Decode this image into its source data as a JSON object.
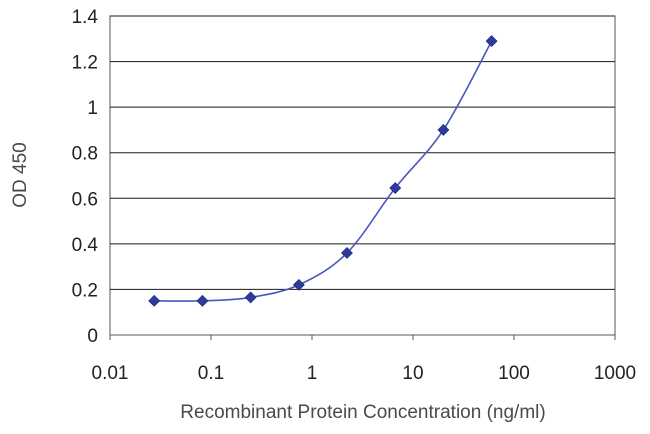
{
  "chart_data": {
    "type": "line",
    "title": "",
    "xlabel": "Recombinant Protein Concentration (ng/ml)",
    "ylabel": "OD 450",
    "x_scale": "log",
    "xlim": [
      0.01,
      1000
    ],
    "ylim": [
      0,
      1.4
    ],
    "x_ticks": [
      "0.01",
      "0.1",
      "1",
      "10",
      "100",
      "1000"
    ],
    "y_ticks": [
      "0",
      "0.2",
      "0.4",
      "0.6",
      "0.8",
      "1",
      "1.2",
      "1.4"
    ],
    "grid": "horizontal",
    "series": [
      {
        "x": [
          0.0274,
          0.0823,
          0.247,
          0.741,
          2.22,
          6.67,
          20,
          60
        ],
        "y": [
          0.15,
          0.15,
          0.165,
          0.22,
          0.36,
          0.645,
          0.9,
          1.29
        ],
        "x_display": [
          0.0274,
          0.0823,
          0.247,
          0.741,
          2.22,
          6.67,
          20,
          60
        ],
        "color": "#2e3a9e"
      }
    ]
  }
}
